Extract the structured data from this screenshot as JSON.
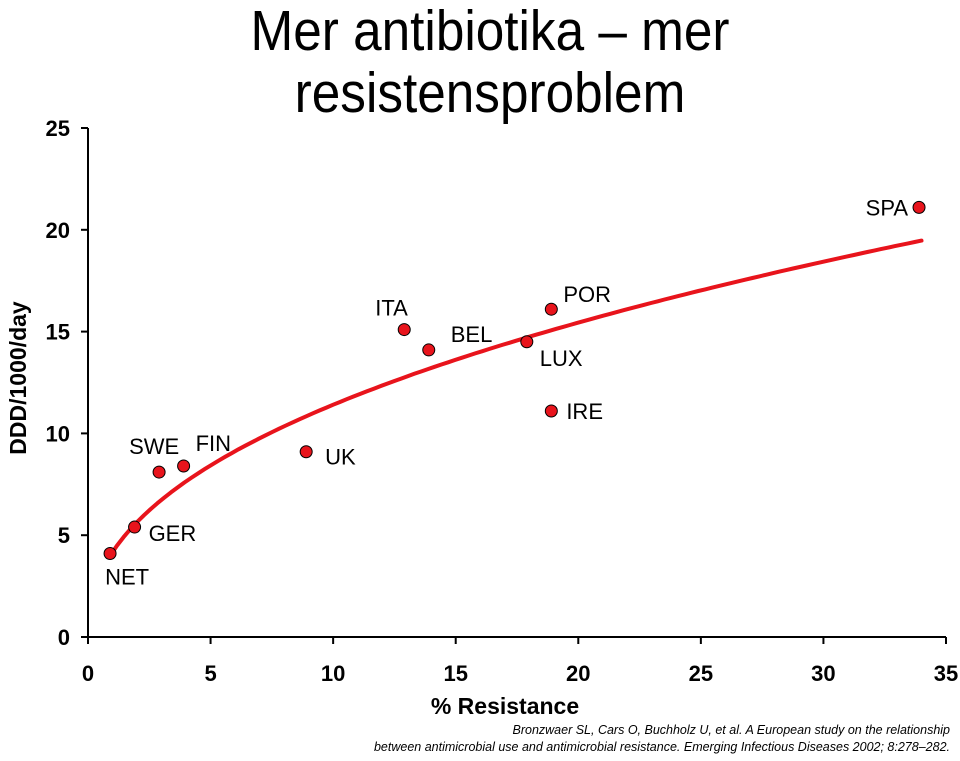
{
  "title": {
    "line1": "Mer antibiotika – mer",
    "line2": "resistensproblem"
  },
  "chart_data": {
    "type": "scatter",
    "xlabel": "% Resistance",
    "ylabel": "DDD/1000/day",
    "xlim": [
      0,
      35
    ],
    "ylim": [
      0,
      25
    ],
    "xticks": [
      0,
      5,
      10,
      15,
      20,
      25,
      30,
      35
    ],
    "yticks": [
      0,
      5,
      10,
      15,
      20,
      25
    ],
    "grid": false,
    "points": [
      {
        "label": "NET",
        "x": 0.9,
        "y": 4.1
      },
      {
        "label": "GER",
        "x": 1.9,
        "y": 5.4
      },
      {
        "label": "SWE",
        "x": 2.9,
        "y": 8.1
      },
      {
        "label": "FIN",
        "x": 3.9,
        "y": 8.4
      },
      {
        "label": "UK",
        "x": 8.9,
        "y": 9.1
      },
      {
        "label": "ITA",
        "x": 12.9,
        "y": 15.1
      },
      {
        "label": "BEL",
        "x": 13.9,
        "y": 14.1
      },
      {
        "label": "LUX",
        "x": 17.9,
        "y": 14.5
      },
      {
        "label": "POR",
        "x": 18.9,
        "y": 16.1
      },
      {
        "label": "IRE",
        "x": 18.9,
        "y": 11.1
      },
      {
        "label": "SPA",
        "x": 33.9,
        "y": 21.1
      }
    ],
    "trendline": {
      "type": "power",
      "x_from": 0.9,
      "x_to": 34,
      "a": 4.17,
      "b": 0.437
    },
    "colors": {
      "marker": "#e8141c",
      "trendline": "#e8141c",
      "axis": "#000000"
    }
  },
  "citation": {
    "line1": "Bronzwaer SL, Cars O, Buchholz U, et al.  A European study on the relationship",
    "line2": "between antimicrobial use and antimicrobial resistance. Emerging Infectious Diseases 2002; 8:278–282."
  }
}
